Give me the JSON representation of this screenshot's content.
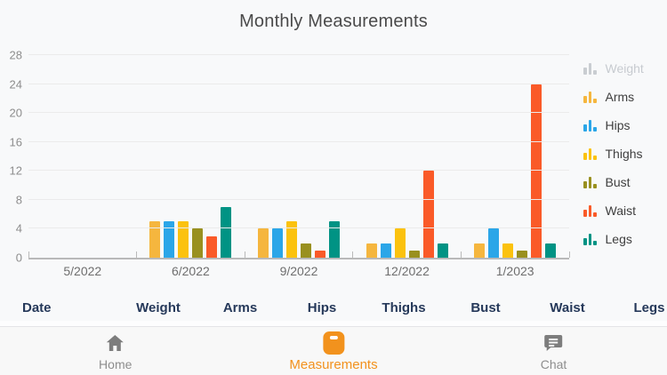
{
  "title": "Monthly Measurements",
  "chart_data": {
    "type": "bar",
    "title": "Monthly Measurements",
    "categories": [
      "5/2022",
      "6/2022",
      "9/2022",
      "12/2022",
      "1/2023"
    ],
    "series": [
      {
        "name": "Weight",
        "color": "#C9CDD1",
        "hidden": true,
        "values": [
          0,
          0,
          0,
          0,
          0
        ]
      },
      {
        "name": "Arms",
        "color": "#F5B63E",
        "hidden": false,
        "values": [
          0,
          5,
          4,
          2,
          2
        ]
      },
      {
        "name": "Hips",
        "color": "#2BA6E8",
        "hidden": false,
        "values": [
          0,
          5,
          4,
          2,
          4
        ]
      },
      {
        "name": "Thighs",
        "color": "#FBC20E",
        "hidden": false,
        "values": [
          0,
          5,
          5,
          4,
          2
        ]
      },
      {
        "name": "Bust",
        "color": "#99901F",
        "hidden": false,
        "values": [
          0,
          4,
          2,
          1,
          1
        ]
      },
      {
        "name": "Waist",
        "color": "#FA5A28",
        "hidden": false,
        "values": [
          0,
          3,
          1,
          12,
          24
        ]
      },
      {
        "name": "Legs",
        "color": "#009384",
        "hidden": false,
        "values": [
          0,
          7,
          5,
          2,
          2
        ]
      }
    ],
    "ylim": [
      0,
      28
    ],
    "yticks": [
      0,
      4,
      8,
      12,
      16,
      20,
      24,
      28
    ],
    "grid": true,
    "legend_position": "right"
  },
  "table": {
    "headers": [
      "Date",
      "Weight",
      "Arms",
      "Hips",
      "Thighs",
      "Bust",
      "Waist",
      "Legs"
    ]
  },
  "nav": {
    "items": [
      {
        "label": "Home",
        "icon": "home-icon",
        "active": false
      },
      {
        "label": "Measurements",
        "icon": "scale-icon",
        "active": true
      },
      {
        "label": "Chat",
        "icon": "chat-icon",
        "active": false
      }
    ],
    "active_color": "#F2921D",
    "inactive_color": "#8E8E8E"
  }
}
